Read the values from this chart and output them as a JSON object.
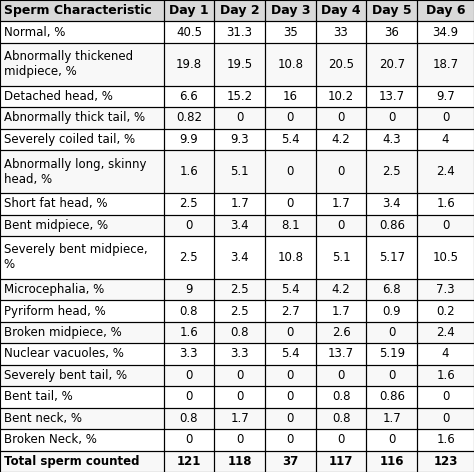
{
  "headers": [
    "Sperm Characteristic",
    "Day 1",
    "Day 2",
    "Day 3",
    "Day 4",
    "Day 5",
    "Day 6"
  ],
  "rows": [
    [
      "Normal, %",
      "40.5",
      "31.3",
      "35",
      "33",
      "36",
      "34.9"
    ],
    [
      "Abnormally thickened\nmidpiece, %",
      "19.8",
      "19.5",
      "10.8",
      "20.5",
      "20.7",
      "18.7"
    ],
    [
      "Detached head, %",
      "6.6",
      "15.2",
      "16",
      "10.2",
      "13.7",
      "9.7"
    ],
    [
      "Abnormally thick tail, %",
      "0.82",
      "0",
      "0",
      "0",
      "0",
      "0"
    ],
    [
      "Severely coiled tail, %",
      "9.9",
      "9.3",
      "5.4",
      "4.2",
      "4.3",
      "4"
    ],
    [
      "Abnormally long, skinny\nhead, %",
      "1.6",
      "5.1",
      "0",
      "0",
      "2.5",
      "2.4"
    ],
    [
      "Short fat head, %",
      "2.5",
      "1.7",
      "0",
      "1.7",
      "3.4",
      "1.6"
    ],
    [
      "Bent midpiece, %",
      "0",
      "3.4",
      "8.1",
      "0",
      "0.86",
      "0"
    ],
    [
      "Severely bent midpiece,\n%",
      "2.5",
      "3.4",
      "10.8",
      "5.1",
      "5.17",
      "10.5"
    ],
    [
      "Microcephalia, %",
      "9",
      "2.5",
      "5.4",
      "4.2",
      "6.8",
      "7.3"
    ],
    [
      "Pyriform head, %",
      "0.8",
      "2.5",
      "2.7",
      "1.7",
      "0.9",
      "0.2"
    ],
    [
      "Broken midpiece, %",
      "1.6",
      "0.8",
      "0",
      "2.6",
      "0",
      "2.4"
    ],
    [
      "Nuclear vacuoles, %",
      "3.3",
      "3.3",
      "5.4",
      "13.7",
      "5.19",
      "4"
    ],
    [
      "Severely bent tail, %",
      "0",
      "0",
      "0",
      "0",
      "0",
      "1.6"
    ],
    [
      "Bent tail, %",
      "0",
      "0",
      "0",
      "0.8",
      "0.86",
      "0"
    ],
    [
      "Bent neck, %",
      "0.8",
      "1.7",
      "0",
      "0.8",
      "1.7",
      "0"
    ],
    [
      "Broken Neck, %",
      "0",
      "0",
      "0",
      "0",
      "0",
      "1.6"
    ],
    [
      "Total sperm counted",
      "121",
      "118",
      "37",
      "117",
      "116",
      "123"
    ]
  ],
  "header_bg": "#d9d9d9",
  "header_font_bold": true,
  "row_bg_even": "#ffffff",
  "row_bg_odd": "#ffffff",
  "border_color": "#000000",
  "font_size": 8.5,
  "header_font_size": 9
}
